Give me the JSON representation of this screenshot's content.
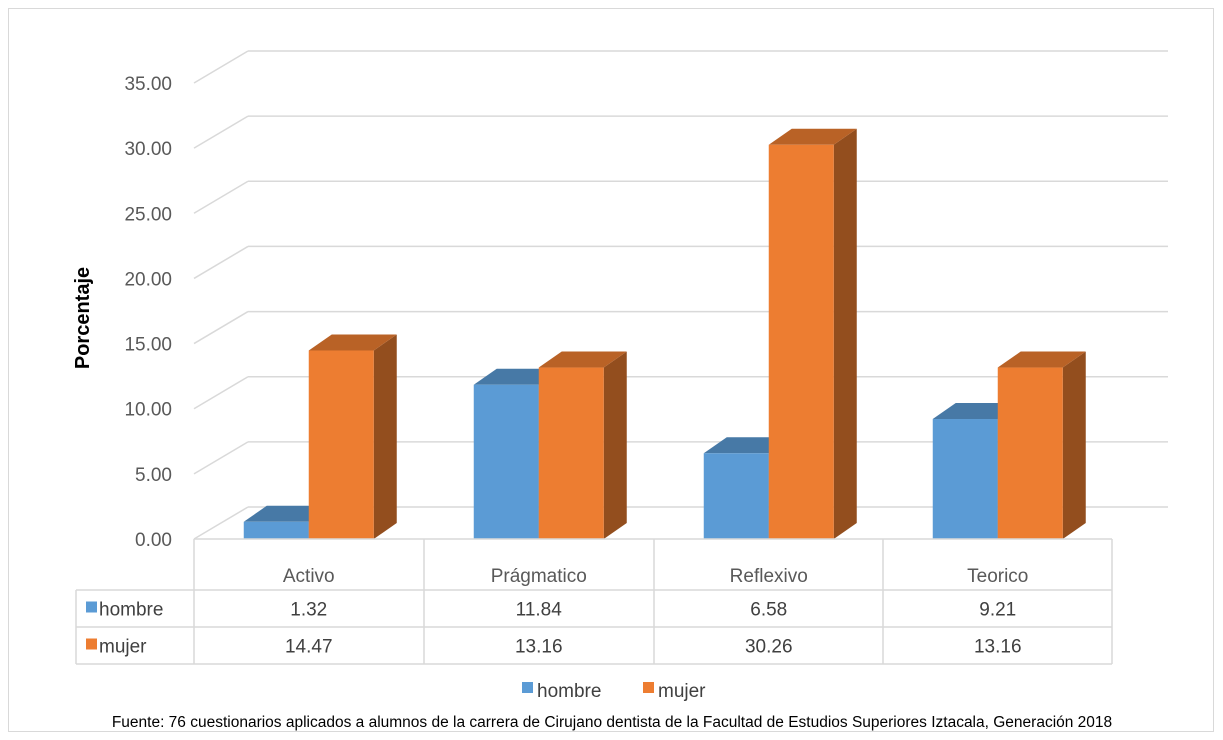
{
  "chart_data": {
    "type": "bar",
    "categories": [
      "Activo",
      "Prágmatico",
      "Reflexivo",
      "Teorico"
    ],
    "series": [
      {
        "name": "hombre",
        "values": [
          1.32,
          11.84,
          6.58,
          9.21
        ],
        "color": "#5b9bd5"
      },
      {
        "name": "mujer",
        "values": [
          14.47,
          13.16,
          30.26,
          13.16
        ],
        "color": "#ed7d31"
      }
    ],
    "ylabel": "Porcentaje",
    "xlabel": "",
    "ylim": [
      0,
      35
    ],
    "yticks": [
      "0.00",
      "5.00",
      "10.00",
      "15.00",
      "20.00",
      "25.00",
      "30.00",
      "35.00"
    ],
    "table_values": [
      [
        "1.32",
        "11.84",
        "6.58",
        "9.21"
      ],
      [
        "14.47",
        "13.16",
        "30.26",
        "13.16"
      ]
    ],
    "legend": [
      "hombre",
      "mujer"
    ],
    "legend_position": "bottom",
    "grid": true,
    "style": "3d-clustered-column-with-data-table"
  },
  "source": "Fuente: 76  cuestionarios aplicados a alumnos de la carrera de Cirujano dentista de la Facultad de Estudios Superiores Iztacala,  Generación 2018"
}
